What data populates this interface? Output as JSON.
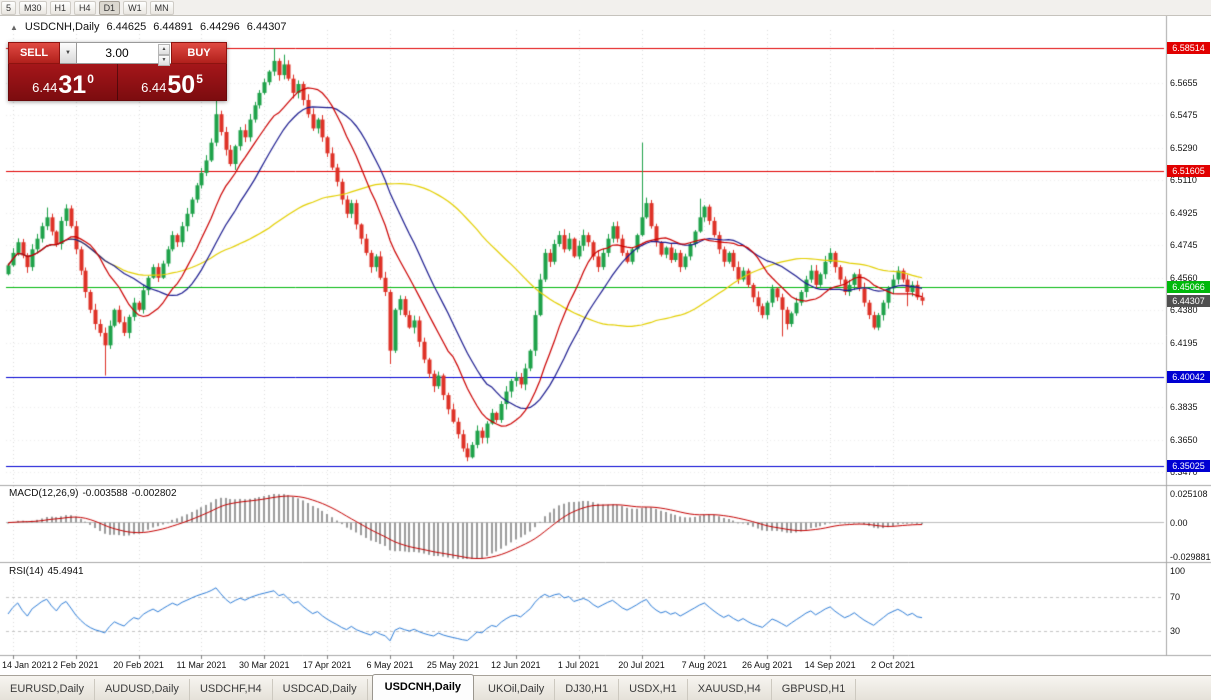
{
  "toolbar": {
    "timeframes": [
      "5",
      "M30",
      "H1",
      "H4",
      "D1",
      "W1",
      "MN"
    ],
    "active": "D1"
  },
  "chart_header": {
    "symbol": "USDCNH,Daily",
    "open": "6.44625",
    "high": "6.44891",
    "low": "6.44296",
    "close": "6.44307"
  },
  "order_panel": {
    "sell_label": "SELL",
    "buy_label": "BUY",
    "volume": "3.00",
    "sell_price": {
      "prefix": "6.44",
      "big": "31",
      "sup": "0"
    },
    "buy_price": {
      "prefix": "6.44",
      "big": "50",
      "sup": "5"
    }
  },
  "price_axis": {
    "ticks": [
      "6.5655",
      "6.5475",
      "6.5290",
      "6.5110",
      "6.4925",
      "6.4745",
      "6.4560",
      "6.4380",
      "6.4195",
      "6.3835",
      "6.3650",
      "6.3470"
    ],
    "current_price": {
      "label": "6.44307",
      "value": 6.44307,
      "color": "#4f4f4f"
    }
  },
  "indicators": {
    "macd": {
      "name": "MACD(12,26,9)",
      "value_main": "-0.003588",
      "value_signal": "-0.002802",
      "axis": [
        {
          "label": "0.025108",
          "value": 0.025108
        },
        {
          "label": "0.00",
          "value": 0
        },
        {
          "label": "-0.029881",
          "value": -0.029881
        }
      ]
    },
    "rsi": {
      "name": "RSI(14)",
      "value": "45.4941",
      "axis": [
        {
          "label": "100",
          "value": 100
        },
        {
          "label": "70",
          "value": 70
        },
        {
          "label": "30",
          "value": 30
        }
      ],
      "levels": [
        70,
        30
      ]
    }
  },
  "x_axis": {
    "dates": [
      {
        "label": "14 Jan 2021",
        "index": 1
      },
      {
        "label": "2 Feb 2021",
        "index": 14
      },
      {
        "label": "20 Feb 2021",
        "index": 27
      },
      {
        "label": "11 Mar 2021",
        "index": 40
      },
      {
        "label": "30 Mar 2021",
        "index": 53
      },
      {
        "label": "17 Apr 2021",
        "index": 66
      },
      {
        "label": "6 May 2021",
        "index": 79
      },
      {
        "label": "25 May 2021",
        "index": 92
      },
      {
        "label": "12 Jun 2021",
        "index": 105
      },
      {
        "label": "1 Jul 2021",
        "index": 118
      },
      {
        "label": "20 Jul 2021",
        "index": 131
      },
      {
        "label": "7 Aug 2021",
        "index": 144
      },
      {
        "label": "26 Aug 2021",
        "index": 157
      },
      {
        "label": "14 Sep 2021",
        "index": 170
      },
      {
        "label": "2 Oct 2021",
        "index": 183
      }
    ]
  },
  "tabs": {
    "items": [
      "EURUSD,Daily",
      "AUDUSD,Daily",
      "USDCHF,H4",
      "USDCAD,Daily",
      "USDCNH,Daily",
      "UKOil,Daily",
      "DJ30,H1",
      "USDX,H1",
      "XAUUSD,H4",
      "GBPUSD,H1"
    ],
    "active_index": 4
  },
  "chart_data": {
    "type": "candlestick",
    "symbol": "USDCNH",
    "timeframe": "Daily",
    "title": "USDCNH Daily with MACD(12,26,9) and RSI(14)",
    "price_range": [
      6.34,
      6.592
    ],
    "first_open": 6.458,
    "closes": [
      6.463,
      6.47,
      6.476,
      6.4685,
      6.462,
      6.472,
      6.478,
      6.485,
      6.49,
      6.482,
      6.475,
      6.488,
      6.495,
      6.485,
      6.472,
      6.46,
      6.448,
      6.438,
      6.43,
      6.425,
      6.418,
      6.429,
      6.438,
      6.431,
      6.425,
      6.434,
      6.442,
      6.438,
      6.449,
      6.456,
      6.462,
      6.456,
      6.464,
      6.472,
      6.48,
      6.476,
      6.485,
      6.492,
      6.5,
      6.508,
      6.515,
      6.522,
      6.532,
      6.548,
      6.538,
      6.528,
      6.52,
      6.53,
      6.539,
      6.535,
      6.545,
      6.553,
      6.56,
      6.566,
      6.572,
      6.578,
      6.57,
      6.576,
      6.568,
      6.56,
      6.565,
      6.556,
      6.548,
      6.54,
      6.545,
      6.535,
      6.526,
      6.518,
      6.51,
      6.5,
      6.492,
      6.498,
      6.486,
      6.478,
      6.47,
      6.462,
      6.468,
      6.456,
      6.448,
      6.415,
      6.438,
      6.444,
      6.435,
      6.428,
      6.432,
      6.42,
      6.41,
      6.402,
      6.395,
      6.401,
      6.39,
      6.382,
      6.375,
      6.368,
      6.36,
      6.355,
      6.362,
      6.37,
      6.366,
      6.374,
      6.38,
      6.376,
      6.385,
      6.392,
      6.398,
      6.4,
      6.396,
      6.405,
      6.415,
      6.435,
      6.455,
      6.47,
      6.465,
      6.475,
      6.48,
      6.472,
      6.478,
      6.468,
      6.474,
      6.48,
      6.476,
      6.468,
      6.462,
      6.47,
      6.478,
      6.485,
      6.478,
      6.47,
      6.465,
      6.472,
      6.48,
      6.49,
      6.498,
      6.485,
      6.476,
      6.469,
      6.473,
      6.466,
      6.47,
      6.462,
      6.468,
      6.475,
      6.482,
      6.49,
      6.496,
      6.488,
      6.48,
      6.472,
      6.465,
      6.47,
      6.462,
      6.455,
      6.46,
      6.452,
      6.445,
      6.44,
      6.435,
      6.442,
      6.45,
      6.445,
      6.438,
      6.43,
      6.436,
      6.442,
      6.448,
      6.455,
      6.46,
      6.452,
      6.458,
      6.465,
      6.47,
      6.462,
      6.455,
      6.448,
      6.452,
      6.458,
      6.45,
      6.442,
      6.435,
      6.428,
      6.435,
      6.442,
      6.45,
      6.455,
      6.46,
      6.455,
      6.448,
      6.452,
      6.445,
      6.44307
    ],
    "wick_overrides": {
      "8": {
        "high": 6.4955
      },
      "20": {
        "low": 6.401
      },
      "43": {
        "high": 6.556
      },
      "55": {
        "high": 6.585
      },
      "57": {
        "high": 6.5815
      },
      "79": {
        "low": 6.4075
      },
      "95": {
        "low": 6.3528
      },
      "109": {
        "low": 6.412
      },
      "131": {
        "high": 6.532
      },
      "143": {
        "high": 6.5005
      },
      "160": {
        "low": 6.423
      },
      "186": {
        "low": 6.44
      }
    },
    "hlines": [
      {
        "value": 6.58514,
        "label": "6.58514",
        "color": "#e10000"
      },
      {
        "value": 6.51605,
        "label": "6.51605",
        "color": "#e10000"
      },
      {
        "value": 6.45066,
        "label": "6.45066",
        "color": "#00b80b"
      },
      {
        "value": 6.40042,
        "label": "6.40042",
        "color": "#0000d2"
      },
      {
        "value": 6.35025,
        "label": "6.35025",
        "color": "#0000d2"
      }
    ],
    "moving_averages": [
      {
        "period": 13,
        "color": "#cc0000"
      },
      {
        "period": 21,
        "color": "#1b1b8f"
      },
      {
        "period": 55,
        "color": "#e3cf00"
      }
    ],
    "up_color": "#1fa24a",
    "down_color": "#de3227",
    "macd_colors": {
      "histogram": "#9b9b9b",
      "signal": "#c40000"
    },
    "rsi_color": "#2f7ed8"
  }
}
